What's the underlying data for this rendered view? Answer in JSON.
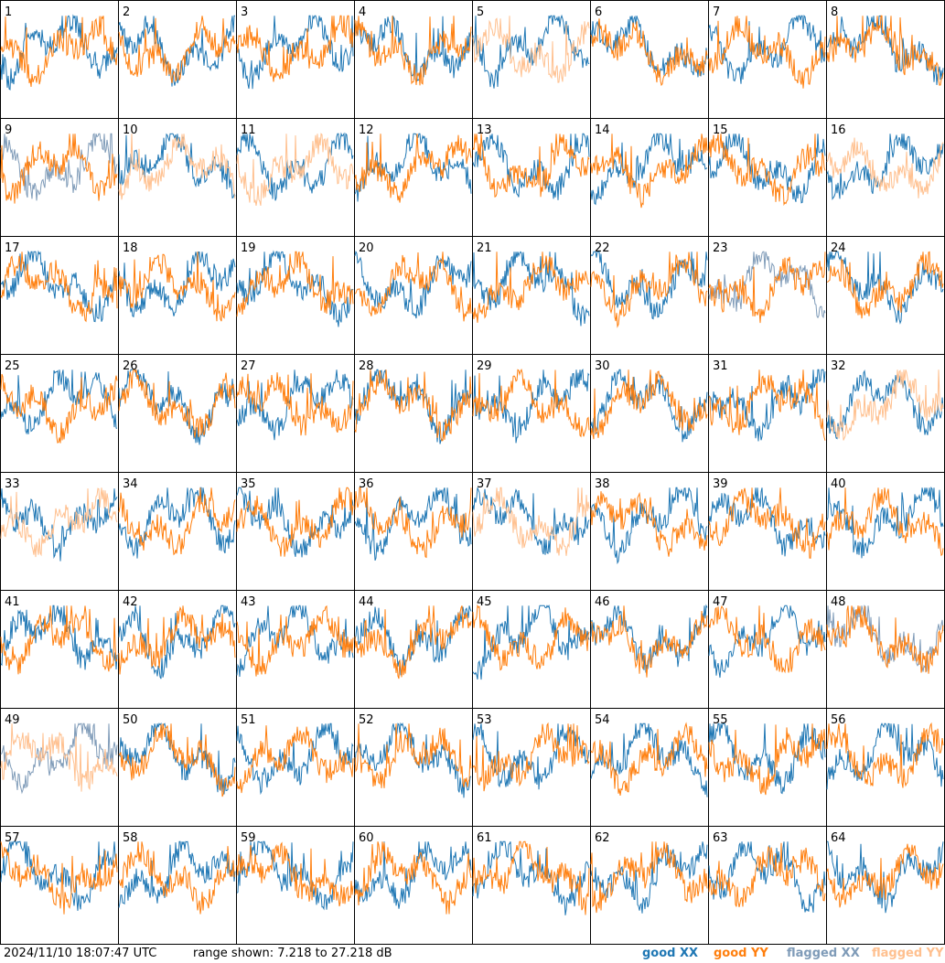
{
  "chart_data": {
    "type": "line",
    "panel_count": 64,
    "panels": [
      "1",
      "2",
      "3",
      "4",
      "5",
      "6",
      "7",
      "8",
      "9",
      "10",
      "11",
      "12",
      "13",
      "14",
      "15",
      "16",
      "17",
      "18",
      "19",
      "20",
      "21",
      "22",
      "23",
      "24",
      "25",
      "26",
      "27",
      "28",
      "29",
      "30",
      "31",
      "32",
      "33",
      "34",
      "35",
      "36",
      "37",
      "38",
      "39",
      "40",
      "41",
      "42",
      "43",
      "44",
      "45",
      "46",
      "47",
      "48",
      "49",
      "50",
      "51",
      "52",
      "53",
      "54",
      "55",
      "56",
      "57",
      "58",
      "59",
      "60",
      "61",
      "62",
      "63",
      "64"
    ],
    "legend": [
      {
        "name": "good XX",
        "color": "#1f77b4"
      },
      {
        "name": "good YY",
        "color": "#ff7f0e"
      },
      {
        "name": "flagged XX",
        "color": "#7f9bb8"
      },
      {
        "name": "flagged YY",
        "color": "#ffc08f"
      }
    ],
    "legend_placement": "bottom-right",
    "ylim": [
      7.218,
      27.218
    ],
    "grid": false,
    "flagged_xx_panels": [
      9,
      23,
      48,
      49
    ],
    "flagged_yy_panels": [
      5,
      10,
      11,
      16,
      32,
      33,
      37,
      49
    ]
  },
  "footer": {
    "timestamp": "2024/11/10 18:07:47 UTC",
    "range_text": "range shown: 7.218 to 27.218 dB",
    "good_xx": "good XX",
    "good_yy": "good YY",
    "flagged_xx": "flagged XX",
    "flagged_yy": "flagged YY"
  },
  "colors": {
    "good_xx": "#1f77b4",
    "good_yy": "#ff7f0e",
    "flagged_xx": "#7f9bb8",
    "flagged_yy": "#ffc08f"
  }
}
